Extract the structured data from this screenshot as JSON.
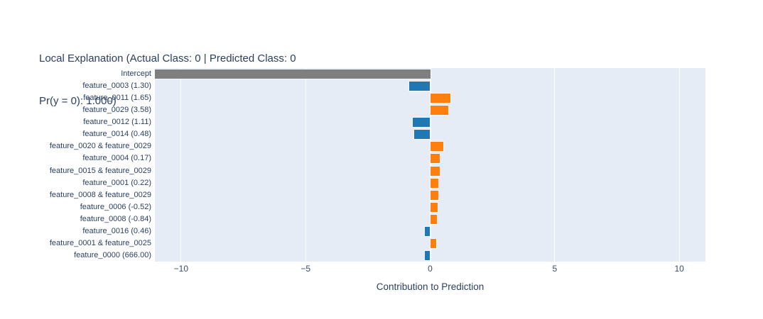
{
  "colors": {
    "positive": "#ff7f0e",
    "negative": "#1f77b4",
    "intercept": "#7f7f7f",
    "plot_background": "#e5ecf6",
    "gridline": "#ffffff",
    "title_text": "#2a3f5f",
    "tick_text": "#3b4a68",
    "page_background": "#ffffff"
  },
  "chart_data": {
    "type": "bar",
    "orientation": "horizontal",
    "title_line1": "Local Explanation (Actual Class: 0 | Predicted Class: 0",
    "title_line2": "Pr(y = 0): 1.000)",
    "xlabel": "Contribution to Prediction",
    "ylabel": "",
    "xlim": [
      -11.05,
      11.05
    ],
    "grid": true,
    "legend": false,
    "xticks": [
      {
        "value": -10,
        "label": "−10"
      },
      {
        "value": -5,
        "label": "−5"
      },
      {
        "value": 0,
        "label": "0"
      },
      {
        "value": 5,
        "label": "5"
      },
      {
        "value": 10,
        "label": "10"
      }
    ],
    "bars": [
      {
        "label": "Intercept",
        "value": -11.05,
        "role": "intercept"
      },
      {
        "label": "feature_0003 (1.30)",
        "value": -0.84,
        "role": "negative"
      },
      {
        "label": "feature_0011 (1.65)",
        "value": 0.81,
        "role": "positive"
      },
      {
        "label": "feature_0029 (3.58)",
        "value": 0.74,
        "role": "positive"
      },
      {
        "label": "feature_0012 (1.11)",
        "value": -0.7,
        "role": "negative"
      },
      {
        "label": "feature_0014 (0.48)",
        "value": -0.65,
        "role": "negative"
      },
      {
        "label": "feature_0020 & feature_0029",
        "value": 0.53,
        "role": "positive"
      },
      {
        "label": "feature_0004 (0.17)",
        "value": 0.38,
        "role": "positive"
      },
      {
        "label": "feature_0015 & feature_0029",
        "value": 0.38,
        "role": "positive"
      },
      {
        "label": "feature_0001 (0.22)",
        "value": 0.34,
        "role": "positive"
      },
      {
        "label": "feature_0008 & feature_0029",
        "value": 0.34,
        "role": "positive"
      },
      {
        "label": "feature_0006 (-0.52)",
        "value": 0.31,
        "role": "positive"
      },
      {
        "label": "feature_0008 (-0.84)",
        "value": 0.28,
        "role": "positive"
      },
      {
        "label": "feature_0016 (0.46)",
        "value": -0.21,
        "role": "negative"
      },
      {
        "label": "feature_0001 & feature_0025",
        "value": 0.24,
        "role": "positive"
      },
      {
        "label": "feature_0000 (666.00)",
        "value": -0.21,
        "role": "negative"
      }
    ]
  }
}
